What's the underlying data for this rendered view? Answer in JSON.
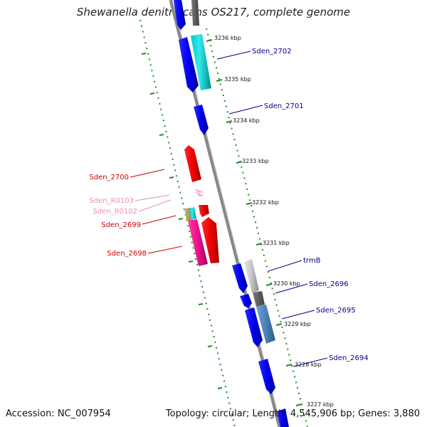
{
  "title": "Shewanella denitrificans OS217, complete genome",
  "footer": {
    "accession": "Accession: NC_007954",
    "topology": "Topology: circular; Length: 4,545,906 bp; Genes: 3,880"
  },
  "colors": {
    "backbone": "#8a8a8a",
    "tick": "#228b22",
    "forward_gene": "#0000ee",
    "reverse_gene": "#ee0000",
    "label_blue": "#00008b",
    "label_red": "#cc0000",
    "label_pink": "#e58fb0"
  },
  "kbp_labels": [
    {
      "id": "k3236",
      "text": "3236 kbp"
    },
    {
      "id": "k3235",
      "text": "3235 kbp"
    },
    {
      "id": "k3234",
      "text": "3234 kbp"
    },
    {
      "id": "k3233",
      "text": "3233 kbp"
    },
    {
      "id": "k3232",
      "text": "3232 kbp"
    },
    {
      "id": "k3231",
      "text": "3231 kbp"
    },
    {
      "id": "k3230",
      "text": "3230 kbp"
    },
    {
      "id": "k3229",
      "text": "3229 kbp"
    },
    {
      "id": "k3228",
      "text": "3228 kbp"
    },
    {
      "id": "k3227",
      "text": "3227 kbp"
    }
  ],
  "gene_labels": [
    {
      "id": "g2702",
      "text": "Sden_2702"
    },
    {
      "id": "g2701",
      "text": "Sden_2701"
    },
    {
      "id": "g2700",
      "text": "Sden_2700"
    },
    {
      "id": "gR0103",
      "text": "Sden_R0103"
    },
    {
      "id": "gR0102",
      "text": "Sden_R0102"
    },
    {
      "id": "g2699",
      "text": "Sden_2699"
    },
    {
      "id": "g2698",
      "text": "Sden_2698"
    },
    {
      "id": "gtrmB",
      "text": "trmB"
    },
    {
      "id": "g2696",
      "text": "Sden_2696"
    },
    {
      "id": "g2695",
      "text": "Sden_2695"
    },
    {
      "id": "g2694",
      "text": "Sden_2694"
    }
  ]
}
